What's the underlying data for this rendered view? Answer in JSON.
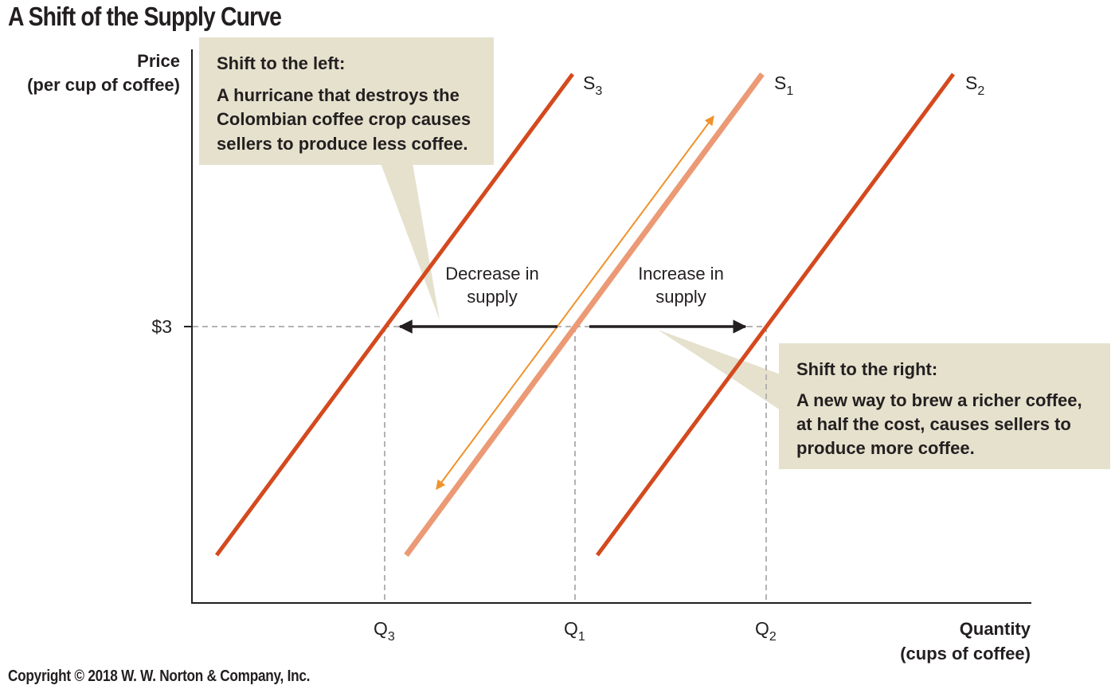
{
  "title": "A Shift of the Supply Curve",
  "copyright": "Copyright © 2018 W. W. Norton & Company, Inc.",
  "colors": {
    "shifted_curve": "#d4491e",
    "original_curve": "#eb9a75",
    "movement_arrow": "#f0922b",
    "callout_fill": "#e5e1cd",
    "dashed": "#b3b3b3",
    "axis": "#231f20"
  },
  "y_axis": {
    "title_line1": "Price",
    "title_line2": "(per cup of coffee)",
    "tick": "$3"
  },
  "x_axis": {
    "title_line1": "Quantity",
    "title_line2": "(cups of coffee)"
  },
  "x_ticks": [
    {
      "main": "Q",
      "sub": "3"
    },
    {
      "main": "Q",
      "sub": "1"
    },
    {
      "main": "Q",
      "sub": "2"
    }
  ],
  "curves": [
    {
      "main": "S",
      "sub": "3"
    },
    {
      "main": "S",
      "sub": "1"
    },
    {
      "main": "S",
      "sub": "2"
    }
  ],
  "notes": {
    "decrease_line1": "Decrease in",
    "decrease_line2": "supply",
    "increase_line1": "Increase in",
    "increase_line2": "supply"
  },
  "callout_left": {
    "heading": "Shift to the left:",
    "line1": "A hurricane that destroys the",
    "line2": "Colombian coffee crop causes",
    "line3": "sellers to produce less coffee."
  },
  "callout_right": {
    "heading": "Shift to the right:",
    "line1": "A new way to brew a richer coffee,",
    "line2": "at half the cost, causes sellers to",
    "line3": "produce more coffee."
  }
}
